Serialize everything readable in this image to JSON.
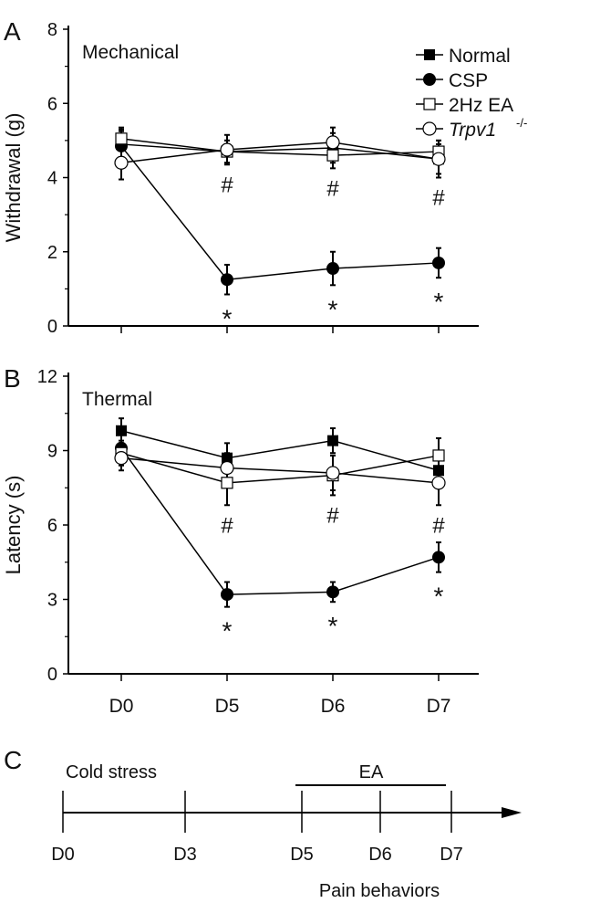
{
  "chart_data": [
    {
      "panel_label": "A",
      "type": "line",
      "title": "Mechanical",
      "ylabel": "Withdrawal (g)",
      "xlabel": "",
      "ylim": [
        0,
        8
      ],
      "yticks": [
        "0",
        "2",
        "4",
        "6",
        "8"
      ],
      "categories": [
        "D0",
        "D5",
        "D6",
        "D7"
      ],
      "series": [
        {
          "name": "Normal",
          "marker": "filled-square",
          "values": [
            4.9,
            4.7,
            4.8,
            4.5
          ],
          "errors": [
            0.4,
            0.3,
            0.4,
            0.4
          ]
        },
        {
          "name": "CSP",
          "marker": "filled-circle",
          "values": [
            4.85,
            1.25,
            1.55,
            1.7
          ],
          "errors": [
            0.4,
            0.4,
            0.45,
            0.4
          ]
        },
        {
          "name": "2Hz EA",
          "marker": "open-square",
          "values": [
            5.05,
            4.7,
            4.6,
            4.7
          ],
          "errors": [
            0.3,
            0.3,
            0.35,
            0.3
          ]
        },
        {
          "name": "Trpv1-/-",
          "marker": "open-circle",
          "values": [
            4.4,
            4.75,
            4.95,
            4.5
          ],
          "errors": [
            0.45,
            0.4,
            0.4,
            0.5
          ]
        }
      ],
      "annotations": {
        "hash": [
          "",
          "#",
          "#",
          "#"
        ],
        "star": [
          "",
          "*",
          "*",
          "*"
        ]
      },
      "legend": {
        "placement": "top-right",
        "items": [
          "Normal",
          "CSP",
          "2Hz EA",
          "Trpv1"
        ],
        "superscript": "-/-"
      }
    },
    {
      "panel_label": "B",
      "type": "line",
      "title": "Thermal",
      "ylabel": "Latency (s)",
      "xlabel": "",
      "ylim": [
        0,
        12
      ],
      "yticks": [
        "0",
        "3",
        "6",
        "9",
        "12"
      ],
      "categories": [
        "D0",
        "D5",
        "D6",
        "D7"
      ],
      "series": [
        {
          "name": "Normal",
          "marker": "filled-square",
          "values": [
            9.8,
            8.7,
            9.4,
            8.2
          ],
          "errors": [
            0.5,
            0.6,
            0.5,
            0.6
          ]
        },
        {
          "name": "CSP",
          "marker": "filled-circle",
          "values": [
            9.1,
            3.2,
            3.3,
            4.7
          ],
          "errors": [
            0.6,
            0.5,
            0.4,
            0.6
          ]
        },
        {
          "name": "2Hz EA",
          "marker": "open-square",
          "values": [
            8.9,
            7.7,
            8.0,
            8.8
          ],
          "errors": [
            0.5,
            0.9,
            0.8,
            0.7
          ]
        },
        {
          "name": "Trpv1-/-",
          "marker": "open-circle",
          "values": [
            8.7,
            8.3,
            8.1,
            7.7
          ],
          "errors": [
            0.5,
            0.6,
            0.7,
            0.9
          ]
        }
      ],
      "annotations": {
        "hash": [
          "",
          "#",
          "#",
          "#"
        ],
        "star": [
          "",
          "*",
          "*",
          "*"
        ]
      }
    }
  ],
  "timeline": {
    "panel_label": "C",
    "ticks": [
      "D0",
      "D3",
      "D5",
      "D6",
      "D7"
    ],
    "cold_stress_label": "Cold stress",
    "ea_label": "EA",
    "pain_label": "Pain behaviors"
  }
}
